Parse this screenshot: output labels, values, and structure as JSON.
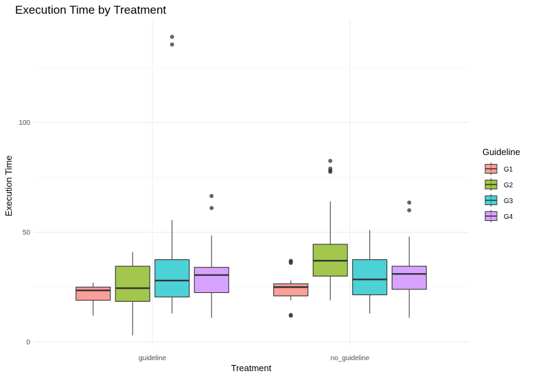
{
  "chart_data": {
    "type": "boxplot",
    "title": "Execution Time by Treatment",
    "xlabel": "Treatment",
    "ylabel": "Execution Time",
    "ylim": [
      -1,
      144
    ],
    "yticks": [
      0,
      50,
      100
    ],
    "grid": true,
    "categories": [
      "guideline",
      "no_guideline"
    ],
    "legend": {
      "title": "Guideline",
      "position": "right"
    },
    "series": [
      {
        "name": "G1",
        "color": "#F8766D",
        "boxes": [
          {
            "category": "guideline",
            "whisker_low": 12,
            "q1": 19,
            "median": 23.5,
            "q3": 25,
            "whisker_high": 27,
            "outliers": []
          },
          {
            "category": "no_guideline",
            "whisker_low": 19,
            "q1": 21,
            "median": 25,
            "q3": 26.5,
            "whisker_high": 28,
            "outliers": [
              12,
              12.3,
              36,
              36.5,
              37
            ]
          }
        ]
      },
      {
        "name": "G2",
        "color": "#7CAE00",
        "boxes": [
          {
            "category": "guideline",
            "whisker_low": 3,
            "q1": 18.5,
            "median": 24.5,
            "q3": 34.5,
            "whisker_high": 41,
            "outliers": []
          },
          {
            "category": "no_guideline",
            "whisker_low": 19,
            "q1": 30,
            "median": 37,
            "q3": 44.5,
            "whisker_high": 64,
            "outliers": [
              77.5,
              78,
              79,
              82.5
            ]
          }
        ]
      },
      {
        "name": "G3",
        "color": "#00BFC4",
        "boxes": [
          {
            "category": "guideline",
            "whisker_low": 13,
            "q1": 20.5,
            "median": 28,
            "q3": 37.5,
            "whisker_high": 55.5,
            "outliers": [
              135.5,
              139
            ]
          },
          {
            "category": "no_guideline",
            "whisker_low": 13,
            "q1": 21.5,
            "median": 28.5,
            "q3": 37.5,
            "whisker_high": 51,
            "outliers": []
          }
        ]
      },
      {
        "name": "G4",
        "color": "#C77CFF",
        "boxes": [
          {
            "category": "guideline",
            "whisker_low": 11,
            "q1": 22.5,
            "median": 30.5,
            "q3": 34,
            "whisker_high": 48.5,
            "outliers": [
              61,
              66.5
            ]
          },
          {
            "category": "no_guideline",
            "whisker_low": 11,
            "q1": 24,
            "median": 31,
            "q3": 34.5,
            "whisker_high": 48,
            "outliers": [
              60,
              63.5
            ]
          }
        ]
      }
    ]
  }
}
